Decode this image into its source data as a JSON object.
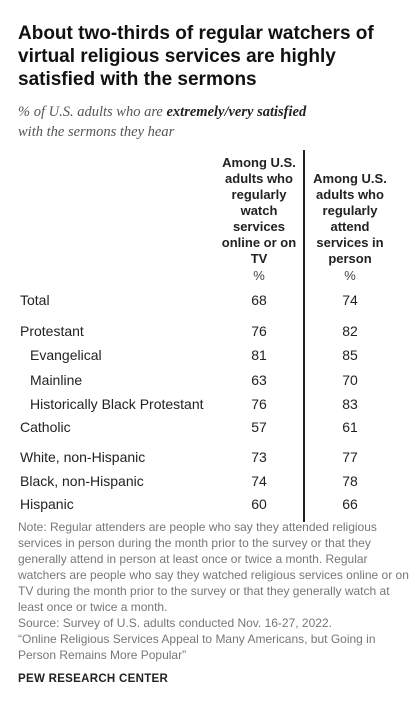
{
  "title": "About two-thirds of regular watchers of virtual religious services are highly satisfied with the sermons",
  "subtitle": {
    "prefix": "% of U.S. adults who are ",
    "emphasis": "extremely/very satisfied",
    "suffix": "with the sermons they hear"
  },
  "chart_data": {
    "type": "table",
    "columns": [
      {
        "header": "Among U.S. adults who regularly watch services online or on TV",
        "unit": "%"
      },
      {
        "header": "Among U.S. adults who regularly attend services in person",
        "unit": "%"
      }
    ],
    "rows": [
      {
        "label": "Total",
        "values": [
          68,
          74
        ],
        "indent": false
      },
      {
        "label": "Protestant",
        "values": [
          76,
          82
        ],
        "indent": false
      },
      {
        "label": "Evangelical",
        "values": [
          81,
          85
        ],
        "indent": true
      },
      {
        "label": "Mainline",
        "values": [
          63,
          70
        ],
        "indent": true
      },
      {
        "label": "Historically Black Protestant",
        "values": [
          76,
          83
        ],
        "indent": true
      },
      {
        "label": "Catholic",
        "values": [
          57,
          61
        ],
        "indent": false
      },
      {
        "label": "White, non-Hispanic",
        "values": [
          73,
          77
        ],
        "indent": false
      },
      {
        "label": "Black, non-Hispanic",
        "values": [
          74,
          78
        ],
        "indent": false
      },
      {
        "label": "Hispanic",
        "values": [
          60,
          66
        ],
        "indent": false
      }
    ]
  },
  "notes": {
    "note": "Note: Regular attenders are people who say they attended religious services in person during the month prior to the survey or that they generally attend in person at least once or twice a month. Regular watchers are people who say they watched religious services online or on TV during the month prior to the survey or that they generally watch at least once or twice a month.",
    "source": "Source: Survey of U.S. adults conducted Nov. 16-27, 2022.",
    "report": "“Online Religious Services Appeal to Many Americans, but Going in Person Remains More Popular”"
  },
  "brand": "PEW RESEARCH CENTER"
}
